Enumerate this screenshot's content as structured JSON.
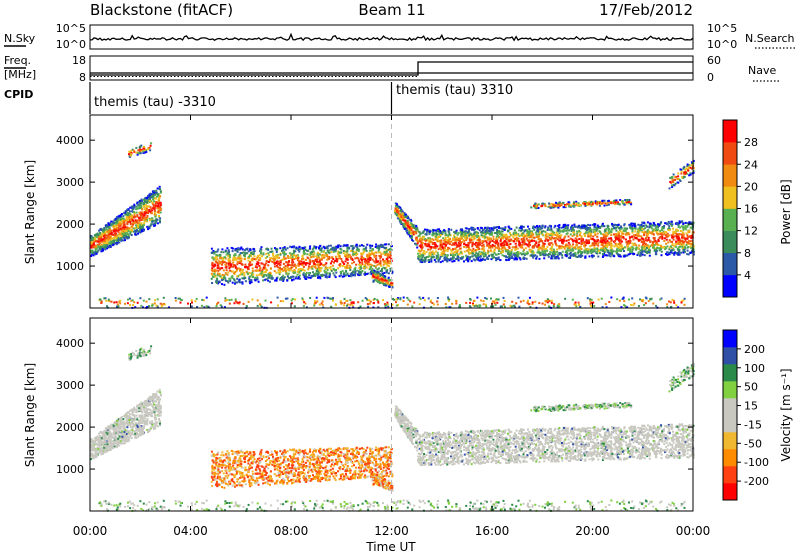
{
  "header": {
    "radar_title": "Blackstone (fitACF)",
    "beam": "Beam 11",
    "date": "17/Feb/2012"
  },
  "noise_panel": {
    "left_label": "N.Sky",
    "right_label": "N.Search",
    "left_ticks": [
      "10^5",
      "10^0"
    ],
    "right_ticks": [
      "10^5",
      "10^0"
    ]
  },
  "freq_panel": {
    "left_label_1": "Freq.",
    "left_label_2": "[MHz]",
    "right_label": "Nave",
    "left_ticks": [
      "18",
      "8"
    ],
    "right_ticks": [
      "60",
      "0"
    ]
  },
  "cpid": {
    "label": "CPID",
    "segments": [
      {
        "text": "themis (tau) -3310",
        "start_hour": 0
      },
      {
        "text": "themis (tau) 3310",
        "start_hour": 12
      }
    ]
  },
  "colors": {
    "power_scale": [
      "#0000ff",
      "#2c58a8",
      "#3a8c5a",
      "#58b050",
      "#f0c020",
      "#f08a10",
      "#f04a10",
      "#ff0000"
    ],
    "velocity_scale": [
      "#ff0000",
      "#ff4010",
      "#ff8c00",
      "#f0b830",
      "#c8c8c0",
      "#c8c8c0",
      "#80d040",
      "#2a8a4a",
      "#3050a8",
      "#0000ff"
    ],
    "ground_scatter": "#c8c8c0",
    "boundary_line": "#bbbbbb"
  },
  "chart_data": [
    {
      "type": "heatmap",
      "name": "Power",
      "ylabel": "Slant Range [km]",
      "ylim": [
        0,
        4600
      ],
      "yticks": [
        1000,
        2000,
        3000,
        4000
      ],
      "xlim_hours": [
        0,
        24
      ],
      "colorbar_label": "Power [dB]",
      "colorbar_ticks": [
        4,
        8,
        12,
        16,
        20,
        24,
        28
      ],
      "colorbar_range": [
        0,
        32
      ]
    },
    {
      "type": "heatmap",
      "name": "Velocity",
      "ylabel": "Slant Range [km]",
      "ylim": [
        0,
        4600
      ],
      "yticks": [
        1000,
        2000,
        3000,
        4000
      ],
      "xlim_hours": [
        0,
        24
      ],
      "colorbar_label": "Velocity [m s⁻¹]",
      "colorbar_ticks": [
        "200",
        "100",
        "50",
        "15",
        "-15",
        "-50",
        "-100",
        "-200"
      ]
    }
  ],
  "xaxis": {
    "title": "Time UT",
    "ticks": [
      "00:00",
      "04:00",
      "08:00",
      "12:00",
      "16:00",
      "20:00",
      "00:00"
    ]
  }
}
